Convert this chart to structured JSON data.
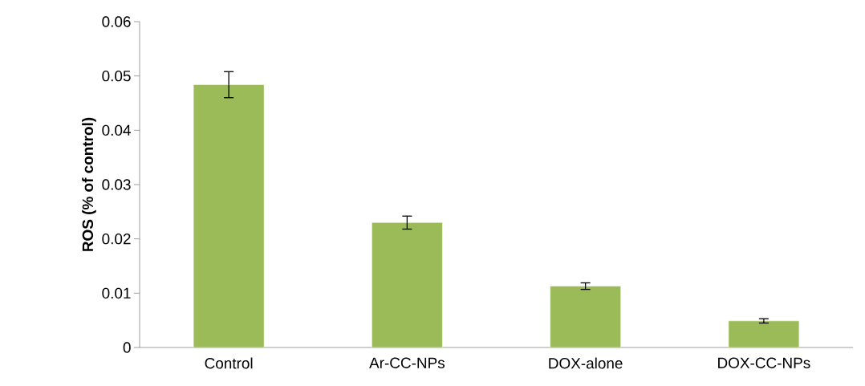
{
  "chart_data": {
    "type": "bar",
    "ylabel": "ROS (% of control)",
    "categories": [
      "Control",
      "Ar-CC-NPs",
      "DOX-alone",
      "DOX-CC-NPs"
    ],
    "values": [
      0.0484,
      0.023,
      0.0113,
      0.0049
    ],
    "errors": [
      0.0024,
      0.0012,
      0.0006,
      0.0004
    ],
    "color": "#9bbb59",
    "ylim": [
      0,
      0.06
    ],
    "yticks": [
      0,
      0.01,
      0.02,
      0.03,
      0.04,
      0.05,
      0.06
    ],
    "grid": false
  }
}
